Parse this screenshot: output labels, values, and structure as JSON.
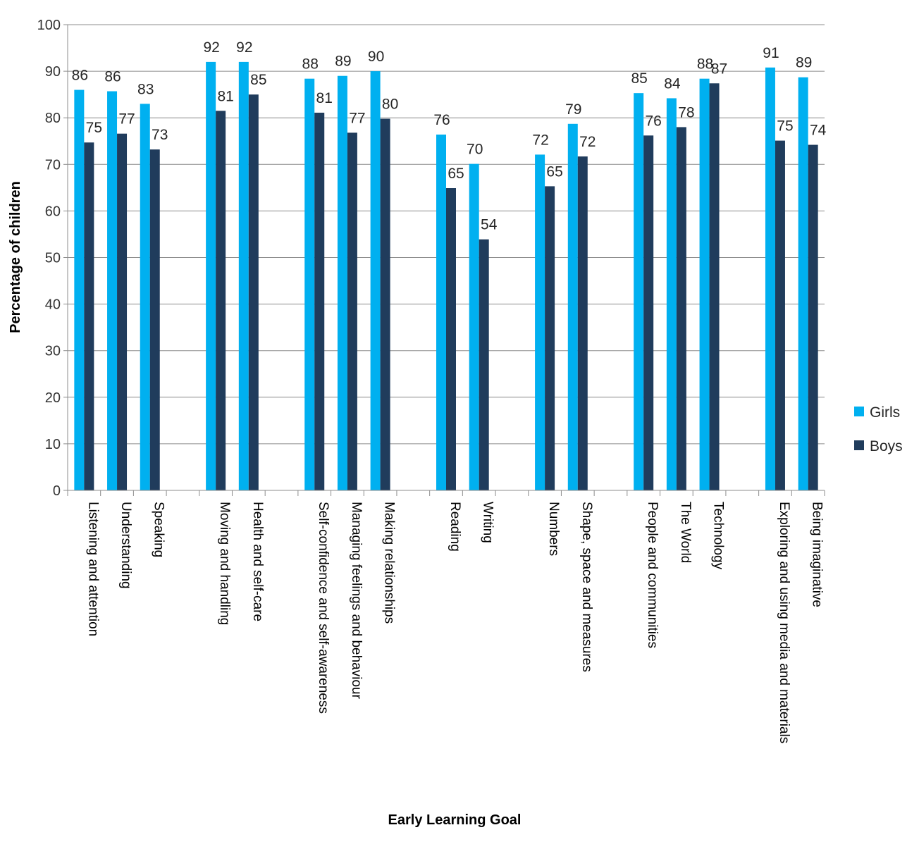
{
  "chart_data": {
    "type": "bar",
    "title": "",
    "xlabel": "Early Learning  Goal",
    "ylabel": "Percentage of children",
    "ylim": [
      0,
      100
    ],
    "yticks": [
      0,
      10,
      20,
      30,
      40,
      50,
      60,
      70,
      80,
      90,
      100
    ],
    "grid": true,
    "legend_position": "right",
    "categories": [
      "Listening and attention",
      "Understanding",
      "Speaking",
      "",
      "Moving and handling",
      "Health and self-care",
      "",
      "Self-confidence and self-awareness",
      "Managing feelings and behaviour",
      "Making relationships",
      "",
      "Reading",
      "Writing",
      "",
      "Numbers",
      "Shape, space and measures",
      "",
      "People and communities",
      "The World",
      "Technology",
      "",
      "Exploring and using media and materials",
      "Being imaginative"
    ],
    "series": [
      {
        "name": "Girls",
        "color": "#00B0F0",
        "values": [
          86,
          85.7,
          83,
          null,
          92,
          92,
          null,
          88.4,
          89,
          90,
          null,
          76.4,
          70.1,
          null,
          72.1,
          78.7,
          null,
          85.3,
          84.2,
          88.4,
          null,
          90.8,
          88.7
        ],
        "labels": [
          "86",
          "86",
          "83",
          "",
          "92",
          "92",
          "",
          "88",
          "89",
          "90",
          "",
          "76",
          "70",
          "",
          "72",
          "79",
          "",
          "85",
          "84",
          "88",
          "",
          "91",
          "89"
        ]
      },
      {
        "name": "Boys",
        "color": "#203C5C",
        "values": [
          74.7,
          76.6,
          73.2,
          null,
          81.5,
          85,
          null,
          81.1,
          76.8,
          79.8,
          null,
          64.9,
          53.9,
          null,
          65.3,
          71.7,
          null,
          76.2,
          78,
          87.4,
          null,
          75.1,
          74.2
        ],
        "labels": [
          "75",
          "77",
          "73",
          "",
          "81",
          "85",
          "",
          "81",
          "77",
          "80",
          "",
          "65",
          "54",
          "",
          "65",
          "72",
          "",
          "76",
          "78",
          "87",
          "",
          "75",
          "74"
        ]
      }
    ]
  }
}
